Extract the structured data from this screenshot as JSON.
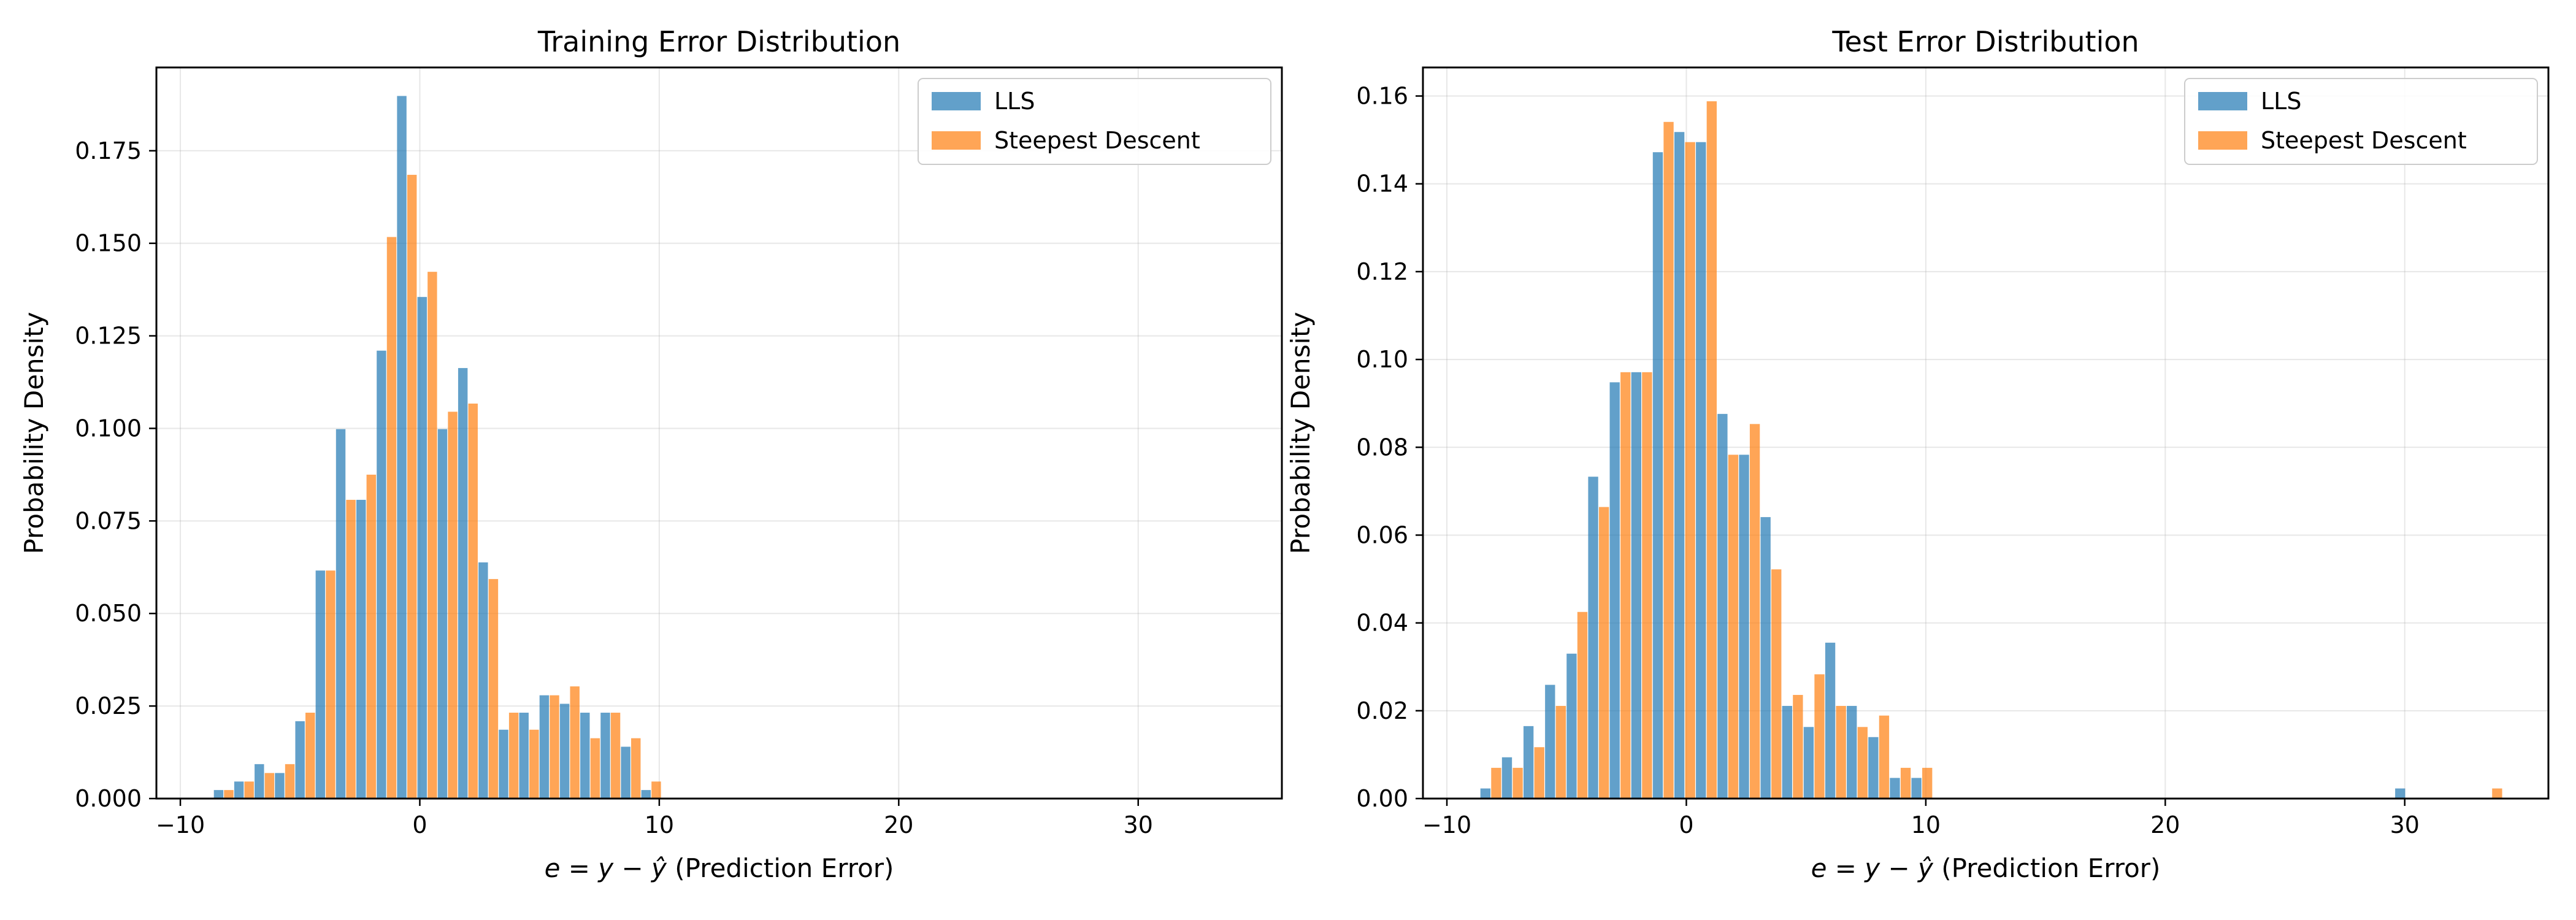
{
  "colors": {
    "lls": "#1f77b4",
    "sd": "#ff7f0e"
  },
  "chart_data": [
    {
      "type": "histogram",
      "title": "Training Error Distribution",
      "xlabel": {
        "prefix_math": "e = y − ŷ",
        "suffix": " (Prediction Error)"
      },
      "ylabel": "Probability Density",
      "xlim": [
        -11,
        36
      ],
      "ylim": [
        0,
        0.1975
      ],
      "xticks": [
        -10,
        0,
        10,
        20,
        30
      ],
      "xtick_labels": [
        "−10",
        "0",
        "10",
        "20",
        "30"
      ],
      "yticks": [
        0,
        0.025,
        0.05,
        0.075,
        0.1,
        0.125,
        0.15,
        0.175
      ],
      "ytick_labels": [
        "0.000",
        "0.025",
        "0.050",
        "0.075",
        "0.100",
        "0.125",
        "0.150",
        "0.175"
      ],
      "grid": true,
      "legend_position": "top-right",
      "bin_width": 0.85,
      "series": [
        {
          "name": "LLS",
          "color_key": "lls",
          "x": [
            -8.6,
            -7.75,
            -6.9,
            -6.05,
            -5.2,
            -4.35,
            -3.5,
            -2.65,
            -1.8,
            -0.95,
            -0.1,
            0.75,
            1.6,
            2.45,
            3.3,
            4.15,
            5.0,
            5.85,
            6.7,
            7.55,
            8.4,
            9.25
          ],
          "values": [
            0.0023,
            0.0046,
            0.0093,
            0.0069,
            0.0209,
            0.0616,
            0.0998,
            0.0807,
            0.121,
            0.1898,
            0.1355,
            0.0998,
            0.1163,
            0.0638,
            0.0186,
            0.0232,
            0.0279,
            0.0256,
            0.0232,
            0.0232,
            0.014,
            0.0023
          ]
        },
        {
          "name": "Steepest Descent",
          "color_key": "sd",
          "x": [
            -8.6,
            -7.75,
            -6.9,
            -6.05,
            -5.2,
            -4.35,
            -3.5,
            -2.65,
            -1.8,
            -0.95,
            -0.1,
            0.75,
            1.6,
            2.45,
            3.3,
            4.15,
            5.0,
            5.85,
            6.7,
            7.55,
            8.4,
            9.25
          ],
          "values": [
            0.0023,
            0.0046,
            0.0069,
            0.0093,
            0.0232,
            0.0616,
            0.0807,
            0.0875,
            0.1517,
            0.1685,
            0.1423,
            0.1045,
            0.1067,
            0.0593,
            0.0232,
            0.0186,
            0.0279,
            0.0303,
            0.0163,
            0.0232,
            0.0163,
            0.0046
          ]
        }
      ]
    },
    {
      "type": "histogram",
      "title": "Test Error Distribution",
      "xlabel": {
        "prefix_math": "e = y − ŷ",
        "suffix": " (Prediction Error)"
      },
      "ylabel": "Probability Density",
      "xlim": [
        -11,
        36
      ],
      "ylim": [
        0,
        0.1665
      ],
      "xticks": [
        -10,
        0,
        10,
        20,
        30
      ],
      "xtick_labels": [
        "−10",
        "0",
        "10",
        "20",
        "30"
      ],
      "yticks": [
        0,
        0.02,
        0.04,
        0.06,
        0.08,
        0.1,
        0.12,
        0.14,
        0.16
      ],
      "ytick_labels": [
        "0.00",
        "0.02",
        "0.04",
        "0.06",
        "0.08",
        "0.10",
        "0.12",
        "0.14",
        "0.16"
      ],
      "grid": true,
      "legend_position": "top-right",
      "bin_width": 0.9,
      "series": [
        {
          "name": "LLS",
          "color_key": "lls",
          "x": [
            -8.6,
            -7.7,
            -6.8,
            -5.9,
            -5.0,
            -4.1,
            -3.2,
            -2.3,
            -1.4,
            -0.5,
            0.4,
            1.3,
            2.2,
            3.1,
            4.0,
            4.9,
            5.8,
            6.7,
            7.6,
            8.5,
            9.4,
            29.6
          ],
          "values": [
            0.0023,
            0.0094,
            0.0165,
            0.0259,
            0.033,
            0.0733,
            0.0948,
            0.0971,
            0.1472,
            0.1518,
            0.1495,
            0.0876,
            0.0783,
            0.0641,
            0.0211,
            0.0163,
            0.0355,
            0.0211,
            0.014,
            0.0047,
            0.0047,
            0.0023
          ]
        },
        {
          "name": "Steepest Descent",
          "color_key": "sd",
          "x": [
            -8.6,
            -7.7,
            -6.8,
            -5.9,
            -5.0,
            -4.1,
            -3.2,
            -2.3,
            -1.4,
            -0.5,
            0.4,
            1.3,
            2.2,
            3.1,
            4.0,
            4.9,
            5.8,
            6.7,
            7.6,
            8.5,
            9.4,
            33.2
          ],
          "values": [
            0.007,
            0.007,
            0.0117,
            0.0211,
            0.0425,
            0.0664,
            0.0971,
            0.0971,
            0.1541,
            0.1495,
            0.1588,
            0.0783,
            0.0853,
            0.0522,
            0.0236,
            0.0283,
            0.0211,
            0.0163,
            0.0189,
            0.007,
            0.007,
            0.0023
          ]
        }
      ]
    }
  ]
}
